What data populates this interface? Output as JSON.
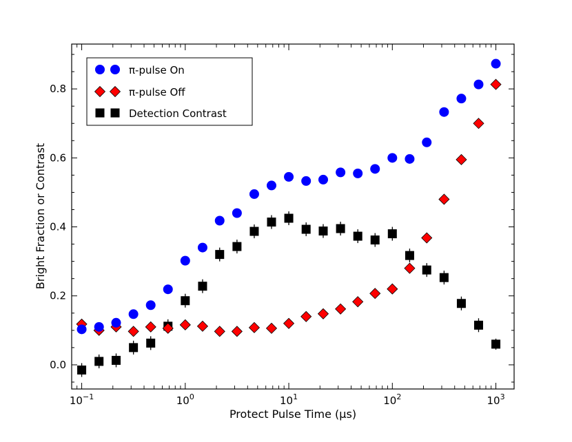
{
  "chart_data": {
    "type": "scatter",
    "title": "",
    "xlabel": "Protect Pulse Time (μs)",
    "ylabel": "Bright Fraction or Contrast",
    "xscale": "log",
    "xlim": [
      0.08,
      1500
    ],
    "ylim": [
      -0.07,
      0.93
    ],
    "xticks": [
      {
        "value": 0.1,
        "base": "10",
        "exp": "−1"
      },
      {
        "value": 1,
        "base": "10",
        "exp": "0"
      },
      {
        "value": 10,
        "base": "10",
        "exp": "1"
      },
      {
        "value": 100,
        "base": "10",
        "exp": "2"
      },
      {
        "value": 1000,
        "base": "10",
        "exp": "3"
      }
    ],
    "yticks": [
      {
        "value": 0.0,
        "label": "0.0"
      },
      {
        "value": 0.2,
        "label": "0.2"
      },
      {
        "value": 0.4,
        "label": "0.4"
      },
      {
        "value": 0.6,
        "label": "0.6"
      },
      {
        "value": 0.8,
        "label": "0.8"
      }
    ],
    "legend_position": "top-left",
    "x": [
      0.1,
      0.147,
      0.215,
      0.316,
      0.464,
      0.681,
      1.0,
      1.47,
      2.15,
      3.16,
      4.64,
      6.81,
      10,
      14.7,
      21.5,
      31.6,
      46.4,
      68.1,
      100,
      147,
      215,
      316,
      464,
      681,
      1000
    ],
    "series": [
      {
        "name": "π-pulse On",
        "marker": "circle",
        "color": "#0000ff",
        "values": [
          0.103,
          0.11,
          0.122,
          0.147,
          0.173,
          0.219,
          0.302,
          0.34,
          0.418,
          0.44,
          0.495,
          0.52,
          0.545,
          0.533,
          0.537,
          0.558,
          0.555,
          0.568,
          0.6,
          0.597,
          0.645,
          0.733,
          0.772,
          0.813,
          0.873
        ],
        "errors": [
          0.012,
          0.012,
          0.012,
          0.012,
          0.012,
          0.012,
          0.012,
          0.012,
          0.012,
          0.012,
          0.012,
          0.012,
          0.012,
          0.012,
          0.012,
          0.012,
          0.012,
          0.012,
          0.012,
          0.012,
          0.012,
          0.012,
          0.012,
          0.012,
          0.008
        ]
      },
      {
        "name": "π-pulse Off",
        "marker": "diamond",
        "color": "#ff0000",
        "values": [
          0.118,
          0.1,
          0.11,
          0.097,
          0.11,
          0.106,
          0.116,
          0.112,
          0.097,
          0.097,
          0.108,
          0.106,
          0.12,
          0.14,
          0.148,
          0.162,
          0.183,
          0.207,
          0.22,
          0.28,
          0.368,
          0.48,
          0.595,
          0.7,
          0.813
        ],
        "errors": [
          0.007,
          0.007,
          0.007,
          0.007,
          0.007,
          0.007,
          0.007,
          0.007,
          0.007,
          0.007,
          0.007,
          0.007,
          0.007,
          0.007,
          0.007,
          0.007,
          0.007,
          0.007,
          0.007,
          0.01,
          0.01,
          0.01,
          0.01,
          0.01,
          0.008
        ]
      },
      {
        "name": "Detection Contrast",
        "marker": "square",
        "color": "#000000",
        "values": [
          -0.015,
          0.01,
          0.013,
          0.05,
          0.063,
          0.112,
          0.186,
          0.228,
          0.32,
          0.343,
          0.387,
          0.414,
          0.425,
          0.393,
          0.388,
          0.395,
          0.373,
          0.362,
          0.38,
          0.317,
          0.275,
          0.253,
          0.178,
          0.115,
          0.06
        ]
      }
    ],
    "contrast_errors": [
      0.02,
      0.02,
      0.02,
      0.02,
      0.02,
      0.02,
      0.02,
      0.02,
      0.02,
      0.02,
      0.02,
      0.02,
      0.02,
      0.02,
      0.02,
      0.02,
      0.02,
      0.02,
      0.02,
      0.02,
      0.02,
      0.02,
      0.02,
      0.02,
      0.016
    ]
  }
}
